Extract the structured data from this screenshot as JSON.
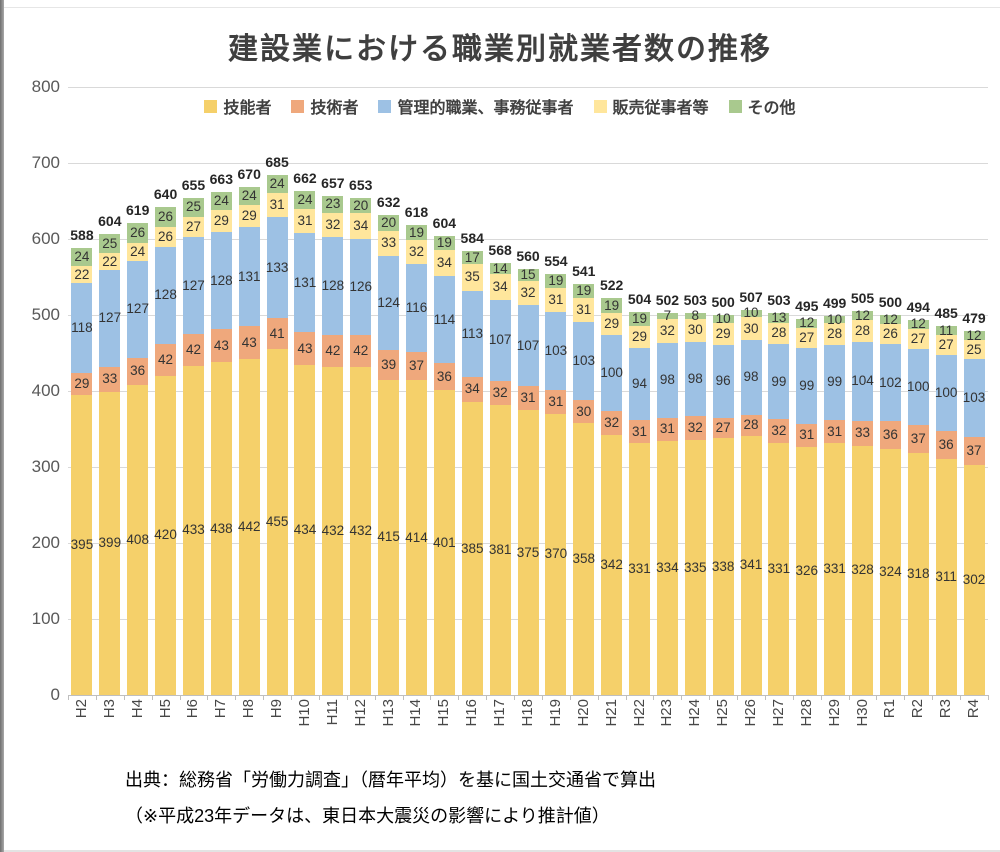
{
  "title": "建設業における職業別就業者数の推移",
  "chart_data": {
    "type": "bar",
    "stacked": true,
    "title": "建設業における職業別就業者数の推移",
    "legend_position": "top",
    "grid": true,
    "ylim": [
      0,
      800
    ],
    "yticks": [
      0,
      100,
      200,
      300,
      400,
      500,
      600,
      700,
      800
    ],
    "categories": [
      "H2",
      "H3",
      "H4",
      "H5",
      "H6",
      "H7",
      "H8",
      "H9",
      "H10",
      "H11",
      "H12",
      "H13",
      "H14",
      "H15",
      "H16",
      "H17",
      "H18",
      "H19",
      "H20",
      "H21",
      "H22",
      "H23",
      "H24",
      "H25",
      "H26",
      "H27",
      "H28",
      "H29",
      "H30",
      "R1",
      "R2",
      "R3",
      "R4"
    ],
    "series": [
      {
        "name": "技能者",
        "color": "#F5D06A",
        "values": [
          395,
          399,
          408,
          420,
          433,
          438,
          442,
          455,
          434,
          432,
          432,
          415,
          414,
          401,
          385,
          381,
          375,
          370,
          358,
          342,
          331,
          334,
          335,
          338,
          341,
          331,
          326,
          331,
          328,
          324,
          318,
          311,
          302
        ]
      },
      {
        "name": "技術者",
        "color": "#EFA87C",
        "values": [
          29,
          33,
          36,
          42,
          42,
          43,
          43,
          41,
          43,
          42,
          42,
          39,
          37,
          36,
          34,
          32,
          31,
          31,
          30,
          32,
          31,
          31,
          32,
          27,
          28,
          32,
          31,
          31,
          33,
          36,
          37,
          36,
          37
        ]
      },
      {
        "name": "管理的職業、事務従事者",
        "color": "#9DC1E4",
        "values": [
          118,
          127,
          127,
          128,
          127,
          128,
          131,
          133,
          131,
          128,
          126,
          124,
          116,
          114,
          113,
          107,
          107,
          103,
          103,
          100,
          94,
          98,
          98,
          96,
          98,
          99,
          99,
          99,
          104,
          102,
          100,
          100,
          103
        ]
      },
      {
        "name": "販売従事者等",
        "color": "#FFE69C",
        "values": [
          22,
          22,
          24,
          26,
          27,
          29,
          29,
          31,
          31,
          32,
          34,
          33,
          32,
          34,
          35,
          34,
          32,
          31,
          31,
          29,
          29,
          32,
          30,
          29,
          30,
          28,
          27,
          28,
          28,
          26,
          27,
          27,
          25
        ]
      },
      {
        "name": "その他",
        "color": "#A9C98E",
        "values": [
          24,
          25,
          26,
          26,
          25,
          24,
          24,
          24,
          24,
          23,
          20,
          20,
          19,
          19,
          17,
          14,
          15,
          19,
          19,
          19,
          19,
          7,
          8,
          10,
          10,
          13,
          12,
          10,
          12,
          12,
          12,
          11,
          12
        ]
      }
    ],
    "totals": [
      588,
      604,
      619,
      640,
      655,
      663,
      670,
      685,
      662,
      657,
      653,
      632,
      618,
      604,
      584,
      568,
      560,
      554,
      541,
      522,
      504,
      502,
      503,
      500,
      507,
      503,
      495,
      499,
      505,
      500,
      494,
      485,
      479
    ]
  },
  "source": {
    "line1": "出典：総務省「労働力調査」（暦年平均）を基に国土交通省で算出",
    "line2": "（※平成23年データは、東日本大震災の影響により推計値）"
  }
}
